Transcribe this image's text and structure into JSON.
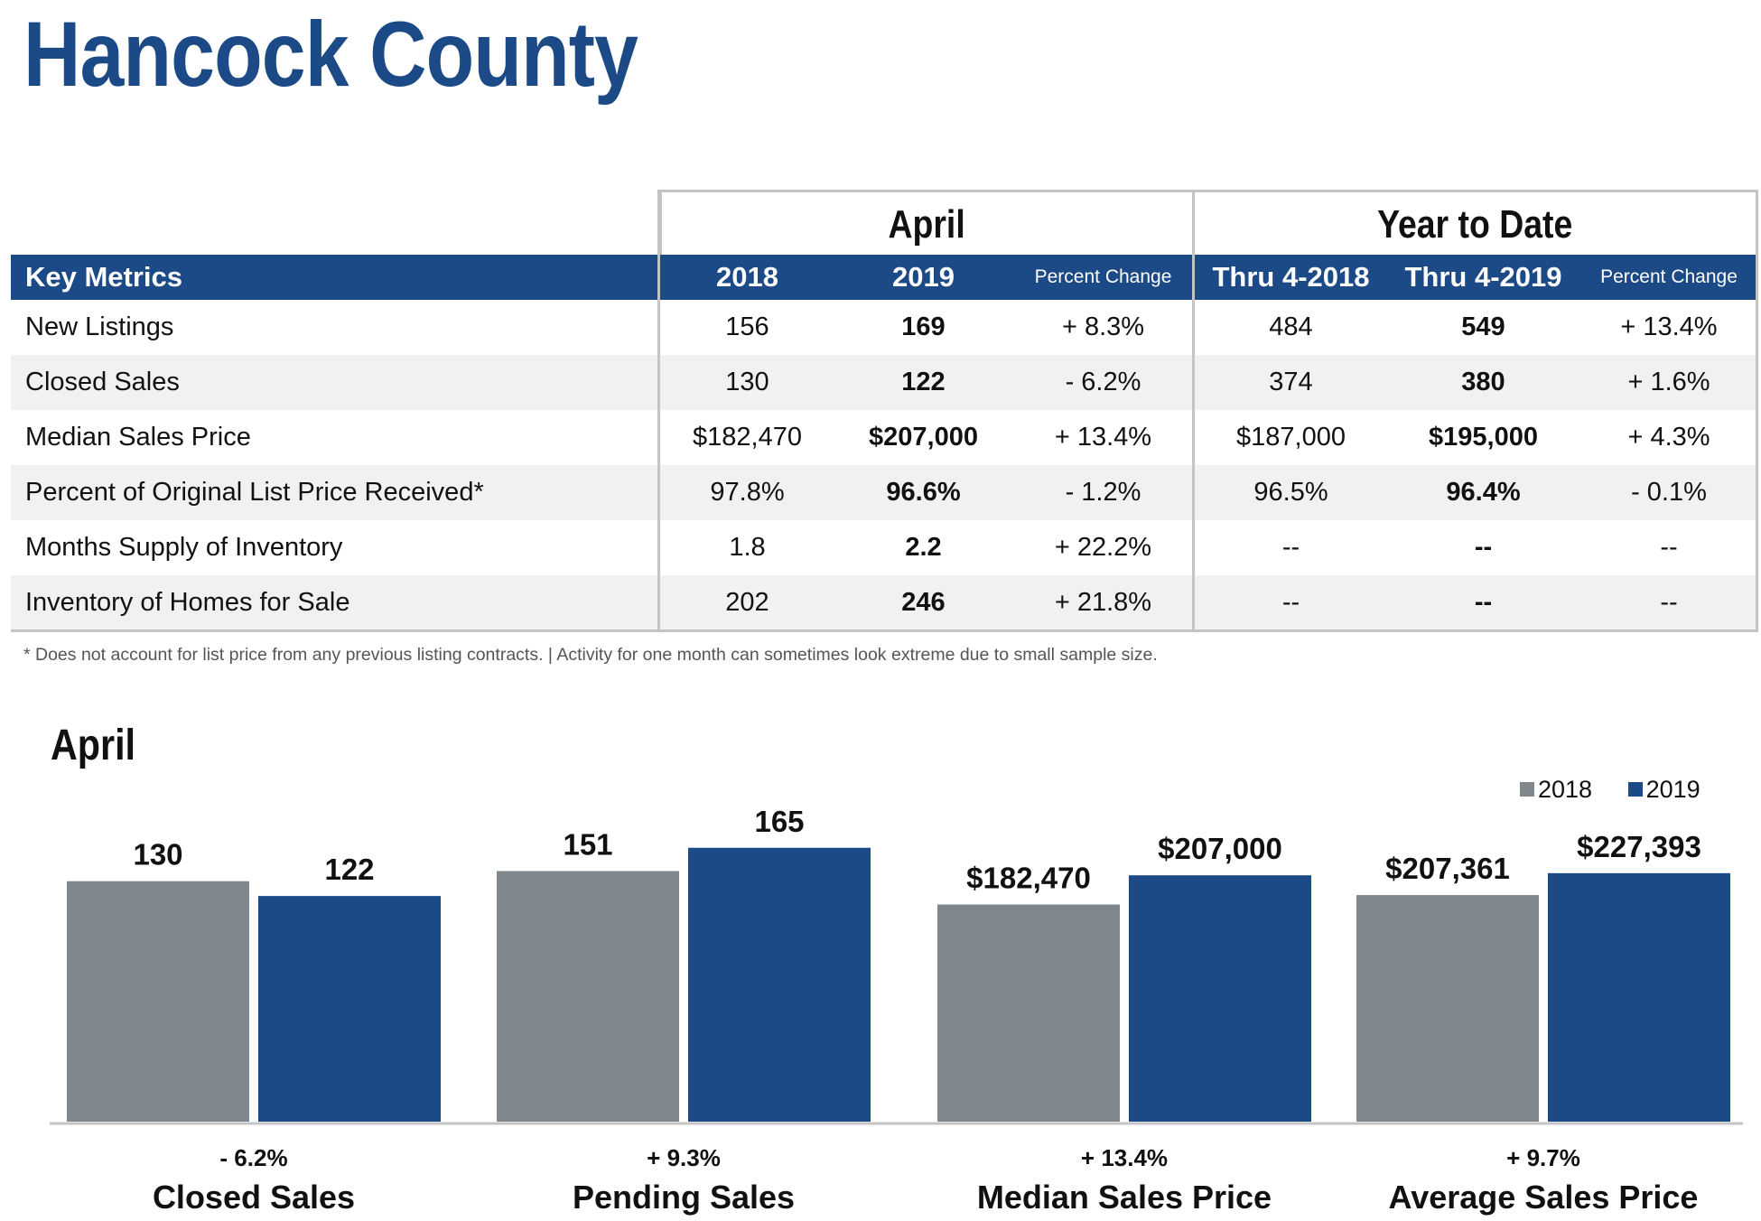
{
  "page": {
    "title": "Hancock County"
  },
  "table": {
    "groups": [
      "April",
      "Year to Date"
    ],
    "headers": [
      "Key Metrics",
      "2018",
      "2019",
      "Percent Change",
      "Thru 4-2018",
      "Thru 4-2019",
      "Percent Change"
    ],
    "rows": [
      [
        "New Listings",
        "156",
        "169",
        "+ 8.3%",
        "484",
        "549",
        "+ 13.4%"
      ],
      [
        "Closed Sales",
        "130",
        "122",
        "- 6.2%",
        "374",
        "380",
        "+ 1.6%"
      ],
      [
        "Median Sales Price",
        "$182,470",
        "$207,000",
        "+ 13.4%",
        "$187,000",
        "$195,000",
        "+ 4.3%"
      ],
      [
        "Percent of Original List Price Received*",
        "97.8%",
        "96.6%",
        "- 1.2%",
        "96.5%",
        "96.4%",
        "- 0.1%"
      ],
      [
        "Months Supply of Inventory",
        "1.8",
        "2.2",
        "+ 22.2%",
        "--",
        "--",
        "--"
      ],
      [
        "Inventory of Homes for Sale",
        "202",
        "246",
        "+ 21.8%",
        "--",
        "--",
        "--"
      ]
    ],
    "footnote": "* Does not account for list price from any previous listing contracts.  |  Activity for one month can sometimes look extreme due to small sample size."
  },
  "colors": {
    "brand": "#1c4a87",
    "series_2018": "#80878d",
    "series_2019": "#1c4a87",
    "grid": "#c4c4c4"
  },
  "chart_data": {
    "type": "bar",
    "title": "April",
    "legend": "top-right",
    "series": [
      {
        "name": "2018",
        "color": "#80878d"
      },
      {
        "name": "2019",
        "color": "#1c4a87"
      }
    ],
    "groups": [
      {
        "category": "Closed Sales",
        "change": "- 6.2%",
        "values": [
          130,
          122
        ],
        "labels": [
          "130",
          "122"
        ],
        "ylim": [
          0,
          166
        ]
      },
      {
        "category": "Pending Sales",
        "change": "+ 9.3%",
        "values": [
          151,
          165
        ],
        "labels": [
          "151",
          "165"
        ],
        "ylim": [
          0,
          185
        ]
      },
      {
        "category": "Median Sales Price",
        "change": "+ 13.4%",
        "values": [
          182470,
          207000
        ],
        "labels": [
          "$182,470",
          "$207,000"
        ],
        "ylim": [
          0,
          258000
        ]
      },
      {
        "category": "Average Sales Price",
        "change": "+ 9.7%",
        "values": [
          207361,
          227393
        ],
        "labels": [
          "$207,361",
          "$227,393"
        ],
        "ylim": [
          0,
          281000
        ]
      }
    ]
  }
}
